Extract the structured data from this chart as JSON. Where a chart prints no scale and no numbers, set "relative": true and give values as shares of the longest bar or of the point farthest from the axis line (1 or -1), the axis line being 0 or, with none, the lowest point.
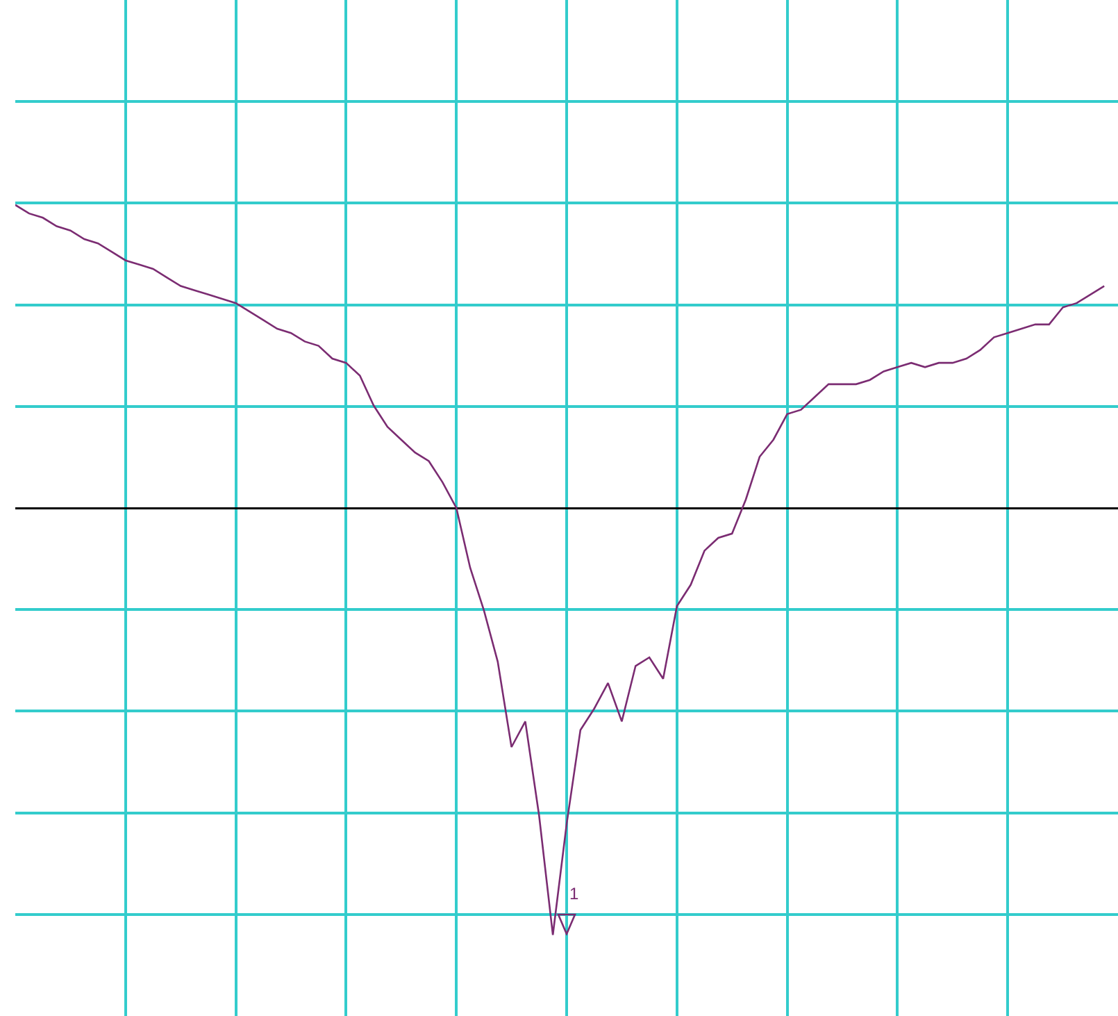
{
  "chart_data": {
    "type": "line",
    "relative": true,
    "grid": true,
    "categories": [
      null,
      null,
      null,
      null,
      null,
      null,
      null,
      null,
      null,
      null,
      null,
      null,
      null,
      null,
      null,
      null,
      null,
      null,
      null,
      null,
      null,
      null,
      null,
      null,
      null,
      null,
      null,
      null,
      null,
      null,
      null,
      null,
      null,
      null,
      null,
      null,
      null,
      null,
      null,
      null,
      null,
      null,
      null,
      null,
      null,
      null,
      null,
      null,
      null,
      null,
      null,
      null,
      null,
      null,
      null,
      null,
      null,
      null,
      null,
      null,
      null,
      null,
      null,
      null,
      null,
      null,
      null,
      null,
      null,
      null,
      null,
      null,
      null,
      null,
      null,
      null,
      null,
      null,
      null,
      null
    ],
    "series": [
      {
        "color": "#7b2c72",
        "values": [
          0.71,
          0.69,
          0.68,
          0.66,
          0.65,
          0.63,
          0.62,
          0.6,
          0.58,
          0.57,
          0.56,
          0.54,
          0.52,
          0.51,
          0.5,
          0.49,
          0.48,
          0.46,
          0.44,
          0.42,
          0.41,
          0.39,
          0.38,
          0.35,
          0.34,
          0.31,
          0.24,
          0.19,
          0.16,
          0.13,
          0.11,
          0.06,
          0,
          -0.14,
          -0.24,
          -0.36,
          -0.56,
          -0.5,
          -0.72,
          -1,
          -0.74,
          -0.52,
          -0.47,
          -0.41,
          -0.5,
          -0.37,
          -0.35,
          -0.4,
          -0.23,
          -0.18,
          -0.1,
          -0.07,
          -0.06,
          0.02,
          0.12,
          0.16,
          0.22,
          0.23,
          0.26,
          0.29,
          0.29,
          0.29,
          0.3,
          0.32,
          0.33,
          0.34,
          0.33,
          0.34,
          0.34,
          0.35,
          0.37,
          0.4,
          0.41,
          0.42,
          0.43,
          0.43,
          0.47,
          0.48,
          0.5,
          0.52
        ]
      }
    ],
    "annotations": [
      "1"
    ]
  }
}
